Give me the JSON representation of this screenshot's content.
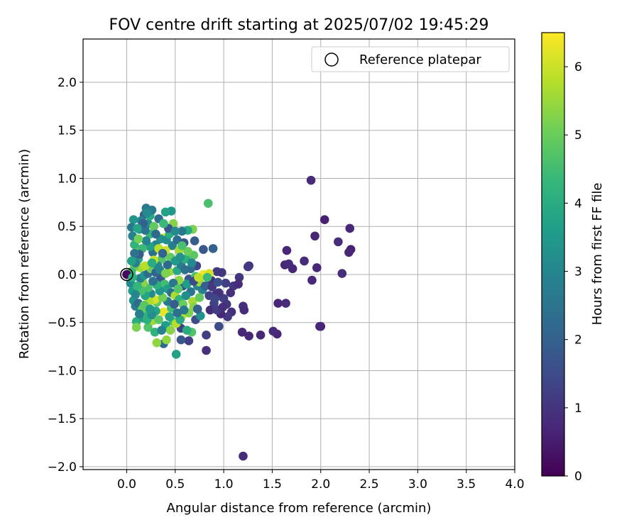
{
  "chart_data": {
    "type": "scatter",
    "title": "FOV centre drift starting at 2025/07/02 19:45:29",
    "xlabel": "Angular distance from reference (arcmin)",
    "ylabel": "Rotation from reference (arcmin)",
    "xlim": [
      -0.45,
      4.0
    ],
    "ylim": [
      -2.03,
      2.45
    ],
    "xticks": [
      "0.0",
      "0.5",
      "1.0",
      "1.5",
      "2.0",
      "2.5",
      "3.0",
      "3.5",
      "4.0"
    ],
    "yticks": [
      "2.0",
      "1.5",
      "1.0",
      "0.5",
      "0.0",
      "−0.5",
      "−1.0",
      "−1.5",
      "−2.0"
    ],
    "grid": true,
    "legend": {
      "position": "top-right",
      "entries": [
        {
          "label": "Reference platepar",
          "marker": "open-circle"
        }
      ]
    },
    "colorbar": {
      "label": "Hours from first FF file",
      "min": 0,
      "max": 6.5,
      "ticks": [
        "0",
        "1",
        "2",
        "3",
        "4",
        "5",
        "6"
      ],
      "colormap": "viridis",
      "colors": [
        "#440154",
        "#482878",
        "#3e4989",
        "#31688e",
        "#26828e",
        "#1f9e89",
        "#35b779",
        "#6ece58",
        "#b5de2b",
        "#fde725"
      ]
    },
    "reference_point": {
      "x": 0.0,
      "y": 0.0
    },
    "points": [
      {
        "x": 1.9,
        "y": 0.98,
        "h": 0.8
      },
      {
        "x": 2.04,
        "y": 0.57,
        "h": 0.6
      },
      {
        "x": 1.94,
        "y": 0.4,
        "h": 0.7
      },
      {
        "x": 2.3,
        "y": 0.48,
        "h": 0.7
      },
      {
        "x": 2.31,
        "y": 0.26,
        "h": 0.6
      },
      {
        "x": 2.29,
        "y": 0.23,
        "h": 0.7
      },
      {
        "x": 2.18,
        "y": 0.34,
        "h": 0.8
      },
      {
        "x": 2.22,
        "y": 0.01,
        "h": 0.8
      },
      {
        "x": 1.65,
        "y": 0.25,
        "h": 0.7
      },
      {
        "x": 1.63,
        "y": 0.1,
        "h": 0.7
      },
      {
        "x": 1.67,
        "y": 0.11,
        "h": 0.8
      },
      {
        "x": 1.71,
        "y": 0.06,
        "h": 0.7
      },
      {
        "x": 1.83,
        "y": 0.14,
        "h": 0.8
      },
      {
        "x": 1.96,
        "y": 0.07,
        "h": 0.7
      },
      {
        "x": 1.91,
        "y": -0.06,
        "h": 0.7
      },
      {
        "x": 1.64,
        "y": -0.3,
        "h": 0.8
      },
      {
        "x": 1.56,
        "y": -0.3,
        "h": 0.7
      },
      {
        "x": 2.0,
        "y": -0.54,
        "h": 0.6
      },
      {
        "x": 1.99,
        "y": -0.54,
        "h": 0.7
      },
      {
        "x": 1.55,
        "y": -0.62,
        "h": 0.7
      },
      {
        "x": 1.51,
        "y": -0.59,
        "h": 0.8
      },
      {
        "x": 1.38,
        "y": -0.63,
        "h": 0.7
      },
      {
        "x": 1.26,
        "y": -0.64,
        "h": 0.7
      },
      {
        "x": 1.2,
        "y": -1.89,
        "h": 0.8
      },
      {
        "x": 1.26,
        "y": 0.09,
        "h": 0.9
      },
      {
        "x": 1.25,
        "y": 0.08,
        "h": 1.1
      },
      {
        "x": 1.16,
        "y": -0.03,
        "h": 1.0
      },
      {
        "x": 1.1,
        "y": -0.12,
        "h": 1.1
      },
      {
        "x": 1.15,
        "y": -0.1,
        "h": 0.8
      },
      {
        "x": 1.07,
        "y": -0.19,
        "h": 0.9
      },
      {
        "x": 1.0,
        "y": -0.25,
        "h": 1.2
      },
      {
        "x": 1.03,
        "y": -0.31,
        "h": 1.0
      },
      {
        "x": 1.08,
        "y": -0.39,
        "h": 0.9
      },
      {
        "x": 1.04,
        "y": -0.44,
        "h": 1.1
      },
      {
        "x": 0.97,
        "y": -0.41,
        "h": 0.7
      },
      {
        "x": 1.2,
        "y": -0.33,
        "h": 0.9
      },
      {
        "x": 1.21,
        "y": -0.37,
        "h": 0.8
      },
      {
        "x": 1.19,
        "y": -0.6,
        "h": 0.7
      },
      {
        "x": 0.95,
        "y": -0.19,
        "h": 1.0
      },
      {
        "x": 0.92,
        "y": -0.21,
        "h": 0.9
      },
      {
        "x": 0.9,
        "y": -0.3,
        "h": 1.3
      },
      {
        "x": 0.86,
        "y": -0.37,
        "h": 0.8
      },
      {
        "x": 0.93,
        "y": 0.03,
        "h": 1.1
      },
      {
        "x": 0.98,
        "y": 0.02,
        "h": 1.0
      },
      {
        "x": 0.87,
        "y": -0.06,
        "h": 0.9
      },
      {
        "x": 0.82,
        "y": -0.63,
        "h": 1.2
      },
      {
        "x": 0.82,
        "y": -0.79,
        "h": 0.9
      },
      {
        "x": 0.95,
        "y": -0.54,
        "h": 1.5
      },
      {
        "x": 0.89,
        "y": 0.27,
        "h": 2.0
      },
      {
        "x": 0.79,
        "y": 0.26,
        "h": 1.8
      },
      {
        "x": 0.84,
        "y": 0.74,
        "h": 4.6
      },
      {
        "x": 0.72,
        "y": 0.09,
        "h": 1.4
      },
      {
        "x": 0.7,
        "y": 0.35,
        "h": 1.9
      },
      {
        "x": 0.68,
        "y": 0.47,
        "h": 5.2
      },
      {
        "x": 0.66,
        "y": 0.18,
        "h": 4.3
      },
      {
        "x": 0.69,
        "y": 0.2,
        "h": 4.8
      },
      {
        "x": 0.66,
        "y": 0.06,
        "h": 2.2
      },
      {
        "x": 0.64,
        "y": -0.05,
        "h": 1.7
      },
      {
        "x": 0.66,
        "y": -0.18,
        "h": 2.5
      },
      {
        "x": 0.68,
        "y": -0.28,
        "h": 5.6
      },
      {
        "x": 0.69,
        "y": -0.34,
        "h": 5.3
      },
      {
        "x": 0.71,
        "y": -0.47,
        "h": 1.5
      },
      {
        "x": 0.67,
        "y": -0.6,
        "h": 4.7
      },
      {
        "x": 0.64,
        "y": -0.69,
        "h": 1.2
      },
      {
        "x": 0.56,
        "y": -0.56,
        "h": 1.3
      },
      {
        "x": 0.56,
        "y": -0.68,
        "h": 1.8
      },
      {
        "x": 0.51,
        "y": -0.83,
        "h": 3.7
      },
      {
        "x": 0.38,
        "y": -0.72,
        "h": 2.2
      },
      {
        "x": 0.41,
        "y": -0.68,
        "h": 5.4
      },
      {
        "x": 0.31,
        "y": -0.71,
        "h": 5.4
      },
      {
        "x": 0.38,
        "y": -0.39,
        "h": 6.3
      },
      {
        "x": 0.48,
        "y": -0.49,
        "h": 4.4
      },
      {
        "x": 0.51,
        "y": -0.51,
        "h": 5.8
      },
      {
        "x": 0.57,
        "y": -0.43,
        "h": 5.9
      },
      {
        "x": 0.62,
        "y": -0.58,
        "h": 4.0
      },
      {
        "x": 0.79,
        "y": 0.0,
        "h": 6.4
      },
      {
        "x": 0.85,
        "y": 0.01,
        "h": 6.1
      },
      {
        "x": 0.83,
        "y": -0.03,
        "h": 4.4
      },
      {
        "x": 0.73,
        "y": -0.12,
        "h": 3.0
      },
      {
        "x": 0.63,
        "y": 0.46,
        "h": 3.9
      },
      {
        "x": 0.57,
        "y": 0.45,
        "h": 2.6
      },
      {
        "x": 0.48,
        "y": 0.53,
        "h": 5.3
      },
      {
        "x": 0.46,
        "y": 0.66,
        "h": 3.4
      },
      {
        "x": 0.4,
        "y": 0.65,
        "h": 3.7
      },
      {
        "x": 0.47,
        "y": 0.3,
        "h": 2.8
      },
      {
        "x": 0.45,
        "y": 0.18,
        "h": 4.9
      },
      {
        "x": 0.44,
        "y": 0.03,
        "h": 5.5
      },
      {
        "x": 0.4,
        "y": 0.25,
        "h": 6.0
      },
      {
        "x": 0.38,
        "y": 0.38,
        "h": 6.2
      },
      {
        "x": 0.35,
        "y": 0.37,
        "h": 3.3
      },
      {
        "x": 0.3,
        "y": 0.31,
        "h": 3.0
      },
      {
        "x": 0.27,
        "y": 0.23,
        "h": 2.4
      },
      {
        "x": 0.24,
        "y": 0.42,
        "h": 4.3
      },
      {
        "x": 0.22,
        "y": 0.53,
        "h": 3.2
      },
      {
        "x": 0.2,
        "y": 0.69,
        "h": 2.6
      },
      {
        "x": 0.18,
        "y": 0.62,
        "h": 2.0
      },
      {
        "x": 0.15,
        "y": 0.56,
        "h": 2.9
      },
      {
        "x": 0.07,
        "y": 0.57,
        "h": 3.4
      },
      {
        "x": 0.05,
        "y": 0.49,
        "h": 2.6
      },
      {
        "x": 0.06,
        "y": 0.4,
        "h": 2.9
      },
      {
        "x": 0.08,
        "y": 0.31,
        "h": 4.2
      },
      {
        "x": 0.1,
        "y": 0.23,
        "h": 4.8
      },
      {
        "x": 0.12,
        "y": 0.16,
        "h": 3.9
      },
      {
        "x": 0.14,
        "y": 0.07,
        "h": 5.6
      },
      {
        "x": 0.08,
        "y": 0.08,
        "h": 5.1
      },
      {
        "x": 0.05,
        "y": 0.03,
        "h": 4.4
      },
      {
        "x": 0.0,
        "y": 0.0,
        "h": 0.2
      },
      {
        "x": 0.04,
        "y": -0.09,
        "h": 3.1
      },
      {
        "x": 0.06,
        "y": -0.17,
        "h": 3.6
      },
      {
        "x": 0.07,
        "y": -0.27,
        "h": 3.3
      },
      {
        "x": 0.09,
        "y": -0.33,
        "h": 2.8
      },
      {
        "x": 0.1,
        "y": -0.49,
        "h": 4.0
      },
      {
        "x": 0.1,
        "y": -0.55,
        "h": 5.2
      },
      {
        "x": 0.17,
        "y": -0.45,
        "h": 3.5
      },
      {
        "x": 0.2,
        "y": -0.4,
        "h": 4.2
      },
      {
        "x": 0.22,
        "y": -0.55,
        "h": 4.7
      },
      {
        "x": 0.27,
        "y": -0.48,
        "h": 5.5
      },
      {
        "x": 0.3,
        "y": -0.38,
        "h": 3.8
      },
      {
        "x": 0.31,
        "y": -0.29,
        "h": 4.9
      },
      {
        "x": 0.29,
        "y": -0.26,
        "h": 6.1
      },
      {
        "x": 0.25,
        "y": -0.2,
        "h": 3.1
      },
      {
        "x": 0.22,
        "y": -0.14,
        "h": 4.6
      },
      {
        "x": 0.17,
        "y": -0.09,
        "h": 5.3
      },
      {
        "x": 0.14,
        "y": -0.04,
        "h": 2.7
      },
      {
        "x": 0.18,
        "y": -0.01,
        "h": 3.4
      },
      {
        "x": 0.22,
        "y": 0.01,
        "h": 2.3
      },
      {
        "x": 0.25,
        "y": 0.06,
        "h": 5.0
      },
      {
        "x": 0.3,
        "y": 0.02,
        "h": 2.1
      },
      {
        "x": 0.35,
        "y": -0.04,
        "h": 1.8
      },
      {
        "x": 0.39,
        "y": -0.1,
        "h": 4.5
      },
      {
        "x": 0.42,
        "y": -0.15,
        "h": 3.6
      },
      {
        "x": 0.46,
        "y": -0.19,
        "h": 2.4
      },
      {
        "x": 0.5,
        "y": -0.22,
        "h": 5.7
      },
      {
        "x": 0.54,
        "y": -0.26,
        "h": 4.2
      },
      {
        "x": 0.58,
        "y": -0.31,
        "h": 5.0
      },
      {
        "x": 0.61,
        "y": -0.22,
        "h": 3.2
      },
      {
        "x": 0.58,
        "y": -0.12,
        "h": 1.6
      },
      {
        "x": 0.54,
        "y": -0.06,
        "h": 5.4
      },
      {
        "x": 0.52,
        "y": 0.04,
        "h": 3.9
      },
      {
        "x": 0.56,
        "y": 0.1,
        "h": 2.7
      },
      {
        "x": 0.6,
        "y": 0.16,
        "h": 4.1
      },
      {
        "x": 0.54,
        "y": 0.25,
        "h": 5.6
      },
      {
        "x": 0.5,
        "y": 0.14,
        "h": 3.5
      },
      {
        "x": 0.42,
        "y": 0.1,
        "h": 2.2
      },
      {
        "x": 0.36,
        "y": 0.16,
        "h": 4.7
      },
      {
        "x": 0.32,
        "y": 0.09,
        "h": 3.0
      },
      {
        "x": 0.28,
        "y": 0.15,
        "h": 5.9
      },
      {
        "x": 0.24,
        "y": 0.29,
        "h": 3.7
      },
      {
        "x": 0.2,
        "y": 0.35,
        "h": 2.9
      },
      {
        "x": 0.16,
        "y": 0.27,
        "h": 4.4
      },
      {
        "x": 0.12,
        "y": 0.37,
        "h": 5.1
      },
      {
        "x": 0.13,
        "y": 0.47,
        "h": 3.5
      },
      {
        "x": 0.19,
        "y": 0.46,
        "h": 2.5
      },
      {
        "x": 0.24,
        "y": 0.61,
        "h": 3.9
      },
      {
        "x": 0.28,
        "y": 0.5,
        "h": 4.9
      },
      {
        "x": 0.33,
        "y": 0.27,
        "h": 5.8
      },
      {
        "x": 0.37,
        "y": 0.22,
        "h": 2.1
      },
      {
        "x": 0.41,
        "y": 0.36,
        "h": 3.2
      },
      {
        "x": 0.44,
        "y": 0.42,
        "h": 4.0
      },
      {
        "x": 0.52,
        "y": 0.36,
        "h": 2.3
      },
      {
        "x": 0.59,
        "y": 0.33,
        "h": 1.7
      },
      {
        "x": 0.63,
        "y": 0.24,
        "h": 5.0
      },
      {
        "x": 0.67,
        "y": 0.12,
        "h": 3.1
      },
      {
        "x": 0.71,
        "y": -0.02,
        "h": 4.6
      },
      {
        "x": 0.75,
        "y": -0.08,
        "h": 5.5
      },
      {
        "x": 0.78,
        "y": -0.16,
        "h": 2.9
      },
      {
        "x": 0.75,
        "y": -0.24,
        "h": 4.9
      },
      {
        "x": 0.76,
        "y": -0.43,
        "h": 3.3
      },
      {
        "x": 0.73,
        "y": -0.36,
        "h": 2.0
      },
      {
        "x": 0.64,
        "y": -0.4,
        "h": 5.2
      },
      {
        "x": 0.59,
        "y": -0.37,
        "h": 2.6
      },
      {
        "x": 0.55,
        "y": -0.47,
        "h": 3.9
      },
      {
        "x": 0.46,
        "y": -0.35,
        "h": 4.5
      },
      {
        "x": 0.42,
        "y": -0.28,
        "h": 2.7
      },
      {
        "x": 0.37,
        "y": -0.24,
        "h": 5.1
      },
      {
        "x": 0.34,
        "y": -0.17,
        "h": 3.4
      },
      {
        "x": 0.31,
        "y": -0.11,
        "h": 4.1
      },
      {
        "x": 0.27,
        "y": -0.07,
        "h": 2.5
      },
      {
        "x": 0.23,
        "y": -0.28,
        "h": 5.7
      },
      {
        "x": 0.19,
        "y": -0.22,
        "h": 3.8
      },
      {
        "x": 0.15,
        "y": -0.17,
        "h": 4.6
      },
      {
        "x": 0.12,
        "y": -0.3,
        "h": 2.2
      },
      {
        "x": 0.16,
        "y": -0.36,
        "h": 5.0
      },
      {
        "x": 0.21,
        "y": -0.47,
        "h": 4.1
      },
      {
        "x": 0.26,
        "y": -0.42,
        "h": 3.2
      },
      {
        "x": 0.33,
        "y": -0.47,
        "h": 4.8
      },
      {
        "x": 0.4,
        "y": -0.53,
        "h": 3.6
      },
      {
        "x": 0.45,
        "y": -0.58,
        "h": 5.3
      },
      {
        "x": 0.09,
        "y": 0.12,
        "h": 2.8
      },
      {
        "x": 0.11,
        "y": -0.12,
        "h": 4.3
      },
      {
        "x": 0.13,
        "y": 0.21,
        "h": 1.9
      },
      {
        "x": 0.19,
        "y": 0.09,
        "h": 5.8
      },
      {
        "x": 0.26,
        "y": 0.12,
        "h": 4.0
      },
      {
        "x": 0.34,
        "y": 0.05,
        "h": 3.0
      },
      {
        "x": 0.4,
        "y": 0.01,
        "h": 5.2
      },
      {
        "x": 0.48,
        "y": -0.09,
        "h": 2.6
      },
      {
        "x": 0.53,
        "y": -0.15,
        "h": 4.7
      },
      {
        "x": 0.62,
        "y": -0.1,
        "h": 3.6
      },
      {
        "x": 0.69,
        "y": -0.07,
        "h": 1.5
      },
      {
        "x": 0.74,
        "y": -0.03,
        "h": 5.9
      },
      {
        "x": 0.81,
        "y": -0.12,
        "h": 2.0
      },
      {
        "x": 0.85,
        "y": -0.22,
        "h": 1.3
      },
      {
        "x": 0.88,
        "y": -0.13,
        "h": 1.1
      },
      {
        "x": 0.91,
        "y": -0.25,
        "h": 1.4
      },
      {
        "x": 0.93,
        "y": -0.37,
        "h": 1.2
      },
      {
        "x": 0.99,
        "y": -0.34,
        "h": 0.9
      },
      {
        "x": 1.02,
        "y": -0.09,
        "h": 1.2
      },
      {
        "x": 0.94,
        "y": -0.08,
        "h": 1.6
      },
      {
        "x": 0.6,
        "y": 0.05,
        "h": 2.4
      },
      {
        "x": 0.55,
        "y": 0.18,
        "h": 3.3
      },
      {
        "x": 0.43,
        "y": 0.48,
        "h": 1.8
      },
      {
        "x": 0.33,
        "y": 0.58,
        "h": 2.3
      },
      {
        "x": 0.26,
        "y": 0.67,
        "h": 2.7
      },
      {
        "x": 0.21,
        "y": 0.64,
        "h": 3.1
      },
      {
        "x": 0.17,
        "y": 0.53,
        "h": 2.0
      },
      {
        "x": 0.11,
        "y": 0.48,
        "h": 3.8
      },
      {
        "x": 0.08,
        "y": 0.22,
        "h": 2.5
      },
      {
        "x": 0.05,
        "y": 0.14,
        "h": 3.7
      },
      {
        "x": 0.06,
        "y": -0.03,
        "h": 4.1
      },
      {
        "x": 0.09,
        "y": -0.21,
        "h": 3.0
      },
      {
        "x": 0.13,
        "y": -0.41,
        "h": 2.8
      },
      {
        "x": 0.18,
        "y": -0.32,
        "h": 4.8
      },
      {
        "x": 0.24,
        "y": -0.36,
        "h": 3.4
      },
      {
        "x": 0.29,
        "y": -0.6,
        "h": 4.2
      },
      {
        "x": 0.36,
        "y": -0.58,
        "h": 2.9
      },
      {
        "x": 0.44,
        "y": -0.44,
        "h": 3.7
      },
      {
        "x": 0.49,
        "y": -0.31,
        "h": 1.9
      },
      {
        "x": 0.52,
        "y": -0.4,
        "h": 2.4
      },
      {
        "x": 0.57,
        "y": 0.3,
        "h": 4.6
      },
      {
        "x": 0.5,
        "y": 0.45,
        "h": 3.1
      },
      {
        "x": 0.38,
        "y": 0.53,
        "h": 4.4
      },
      {
        "x": 0.3,
        "y": 0.42,
        "h": 2.2
      }
    ]
  }
}
